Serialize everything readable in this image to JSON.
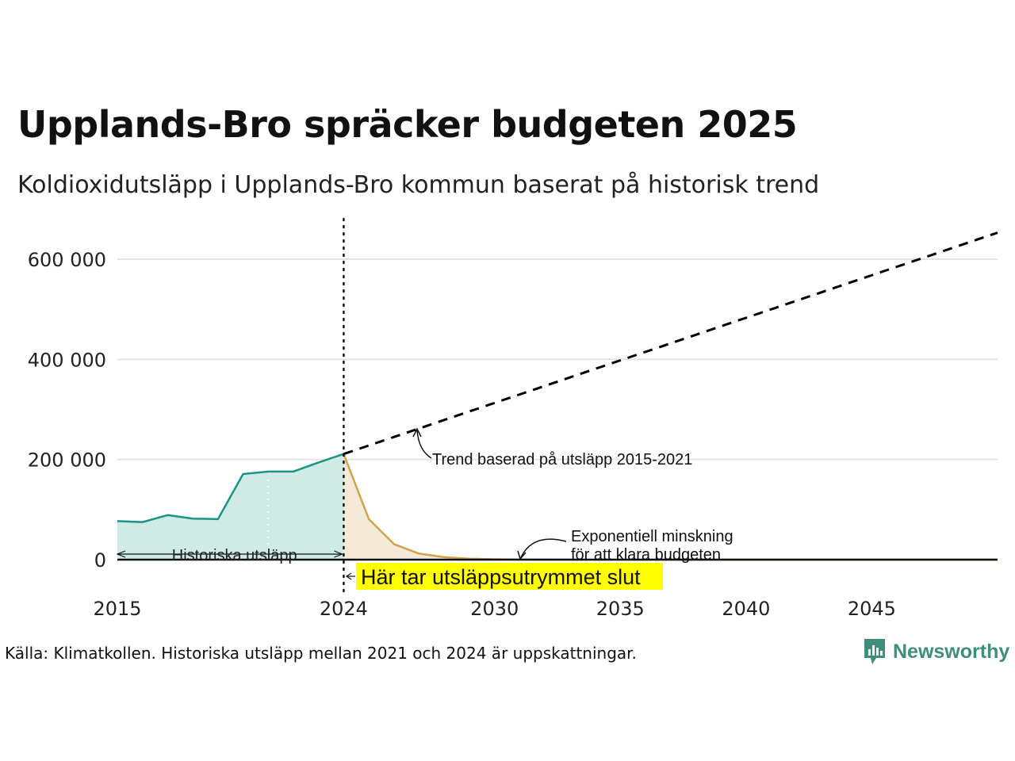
{
  "chart_data": {
    "type": "area",
    "title": "Upplands-Bro spräcker budgeten 2025",
    "subtitle": "Koldioxidutsläpp i Upplands-Bro kommun baserat på historisk trend",
    "xlim": [
      2015,
      2050
    ],
    "ylim": [
      -90000,
      680000
    ],
    "y_ticks": [
      {
        "value": 0,
        "label": "0"
      },
      {
        "value": 200000,
        "label": "200 000"
      },
      {
        "value": 400000,
        "label": "400 000"
      },
      {
        "value": 600000,
        "label": "600 000"
      }
    ],
    "x_ticks": [
      {
        "value": 2015,
        "label": "2015"
      },
      {
        "value": 2024,
        "label": "2024"
      },
      {
        "value": 2030,
        "label": "2030"
      },
      {
        "value": 2035,
        "label": "2035"
      },
      {
        "value": 2040,
        "label": "2040"
      },
      {
        "value": 2045,
        "label": "2045"
      }
    ],
    "grid": true,
    "series": [
      {
        "color": "#1a9486",
        "fill": "#d0ebe6",
        "x": [
          2015,
          2016,
          2017,
          2018,
          2019,
          2020,
          2021,
          2022,
          2023,
          2024
        ],
        "values": [
          77000,
          75000,
          89000,
          82000,
          81000,
          171000,
          176000,
          176000,
          194000,
          211000
        ]
      },
      {
        "color": "#d4a24a",
        "fill": "#f5ead8",
        "x": [
          2024,
          2025,
          2026,
          2027,
          2028,
          2029,
          2030,
          2031,
          2032,
          2034,
          2036,
          2040,
          2045,
          2050
        ],
        "values": [
          211000,
          81000,
          31000,
          12000,
          5000,
          2000,
          800,
          300,
          100,
          0,
          0,
          0,
          0,
          0
        ]
      },
      {
        "color": "#000000",
        "style": "dashed",
        "x": [
          2024,
          2050
        ],
        "values": [
          211000,
          653000
        ]
      }
    ],
    "annotations": {
      "trend": "Trend baserad på utsläpp 2015-2021",
      "exp_line1": "Exponentiell minskning",
      "exp_line2": "för att klara budgeten",
      "hist": "Historiska utsläpp",
      "budget_end": "Här tar utsläppsutrymmet slut"
    },
    "colors": {
      "grid": "#e3e3e3",
      "highlight": "#ffff00",
      "axis_text": "#222222"
    }
  },
  "source": "Källa: Klimatkollen. Historiska utsläpp mellan 2021 och 2024 är uppskattningar.",
  "logo": {
    "text": "Newsworthy",
    "icon": "bar-chart-speech-icon",
    "color": "#3e8e7b"
  }
}
